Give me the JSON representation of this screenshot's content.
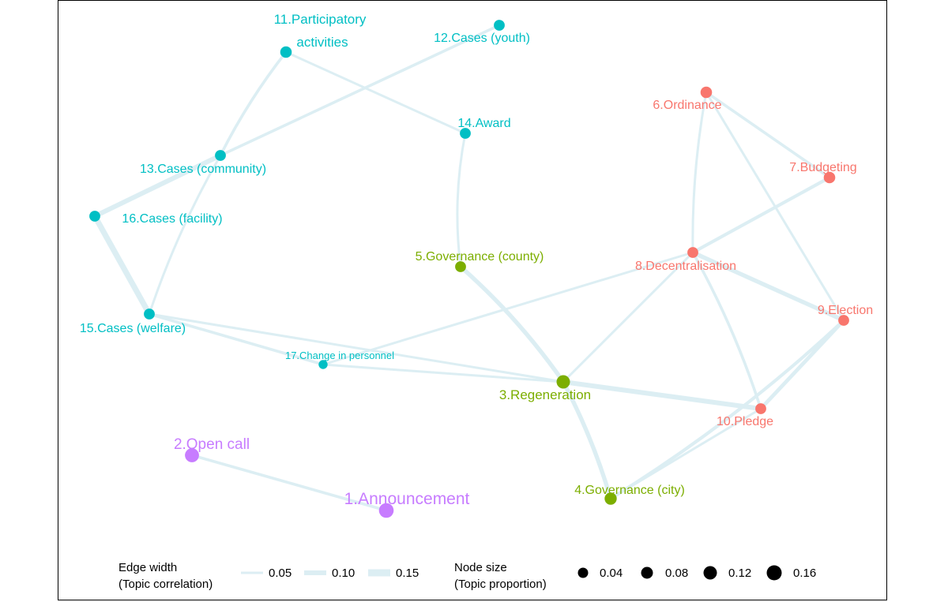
{
  "colors": {
    "cyan": "#00BFC4",
    "red": "#F8766D",
    "green": "#7CAE00",
    "purple": "#C77CFF",
    "edge": "#DCEEF3"
  },
  "nodes": [
    {
      "id": "n1",
      "label": "1.Announcement",
      "group": "purple",
      "proportion": 0.12
    },
    {
      "id": "n2",
      "label": "2.Open call",
      "group": "purple",
      "proportion": 0.11
    },
    {
      "id": "n3",
      "label": "3.Regeneration",
      "group": "green",
      "proportion": 0.1
    },
    {
      "id": "n4",
      "label": "4.Governance (city)",
      "group": "green",
      "proportion": 0.08
    },
    {
      "id": "n5",
      "label": "5.Governance (county)",
      "group": "green",
      "proportion": 0.06
    },
    {
      "id": "n6",
      "label": "6.Ordinance",
      "group": "red",
      "proportion": 0.07
    },
    {
      "id": "n7",
      "label": "7.Budgeting",
      "group": "red",
      "proportion": 0.07
    },
    {
      "id": "n8",
      "label": "8.Decentralisation",
      "group": "red",
      "proportion": 0.06
    },
    {
      "id": "n9",
      "label": "9.Election",
      "group": "red",
      "proportion": 0.06
    },
    {
      "id": "n10",
      "label": "10.Pledge",
      "group": "red",
      "proportion": 0.06
    },
    {
      "id": "n11",
      "label": "11.Participatory activities",
      "group": "cyan",
      "proportion": 0.07
    },
    {
      "id": "n12",
      "label": "12.Cases (youth)",
      "group": "cyan",
      "proportion": 0.06
    },
    {
      "id": "n13",
      "label": "13.Cases (community)",
      "group": "cyan",
      "proportion": 0.06
    },
    {
      "id": "n14",
      "label": "14.Award",
      "group": "cyan",
      "proportion": 0.06
    },
    {
      "id": "n15",
      "label": "15.Cases (welfare)",
      "group": "cyan",
      "proportion": 0.06
    },
    {
      "id": "n16",
      "label": "16.Cases (facility)",
      "group": "cyan",
      "proportion": 0.06
    },
    {
      "id": "n17",
      "label": "17.Change in personnel",
      "group": "cyan",
      "proportion": 0.03
    }
  ],
  "edges": [
    {
      "from": "n1",
      "to": "n2",
      "weight": 0.06
    },
    {
      "from": "n11",
      "to": "n13",
      "weight": 0.06
    },
    {
      "from": "n11",
      "to": "n14",
      "weight": 0.05
    },
    {
      "from": "n12",
      "to": "n13",
      "weight": 0.06
    },
    {
      "from": "n13",
      "to": "n16",
      "weight": 0.1
    },
    {
      "from": "n13",
      "to": "n15",
      "weight": 0.05
    },
    {
      "from": "n16",
      "to": "n15",
      "weight": 0.12
    },
    {
      "from": "n14",
      "to": "n5",
      "weight": 0.05
    },
    {
      "from": "n15",
      "to": "n17",
      "weight": 0.06
    },
    {
      "from": "n15",
      "to": "n3",
      "weight": 0.05
    },
    {
      "from": "n17",
      "to": "n3",
      "weight": 0.05
    },
    {
      "from": "n17",
      "to": "n8",
      "weight": 0.05
    },
    {
      "from": "n5",
      "to": "n3",
      "weight": 0.09
    },
    {
      "from": "n3",
      "to": "n4",
      "weight": 0.09
    },
    {
      "from": "n3",
      "to": "n8",
      "weight": 0.05
    },
    {
      "from": "n3",
      "to": "n10",
      "weight": 0.1
    },
    {
      "from": "n4",
      "to": "n9",
      "weight": 0.07
    },
    {
      "from": "n4",
      "to": "n10",
      "weight": 0.05
    },
    {
      "from": "n6",
      "to": "n7",
      "weight": 0.06
    },
    {
      "from": "n6",
      "to": "n8",
      "weight": 0.05
    },
    {
      "from": "n6",
      "to": "n9",
      "weight": 0.05
    },
    {
      "from": "n7",
      "to": "n8",
      "weight": 0.07
    },
    {
      "from": "n8",
      "to": "n9",
      "weight": 0.09
    },
    {
      "from": "n8",
      "to": "n10",
      "weight": 0.06
    },
    {
      "from": "n9",
      "to": "n10",
      "weight": 0.08
    }
  ],
  "legend": {
    "edge_title_1": "Edge width",
    "edge_title_2": "(Topic correlation)",
    "edge_values": [
      "0.05",
      "0.10",
      "0.15"
    ],
    "node_title_1": "Node size",
    "node_title_2": "(Topic proportion)",
    "node_values": [
      "0.04",
      "0.08",
      "0.12",
      "0.16"
    ]
  }
}
